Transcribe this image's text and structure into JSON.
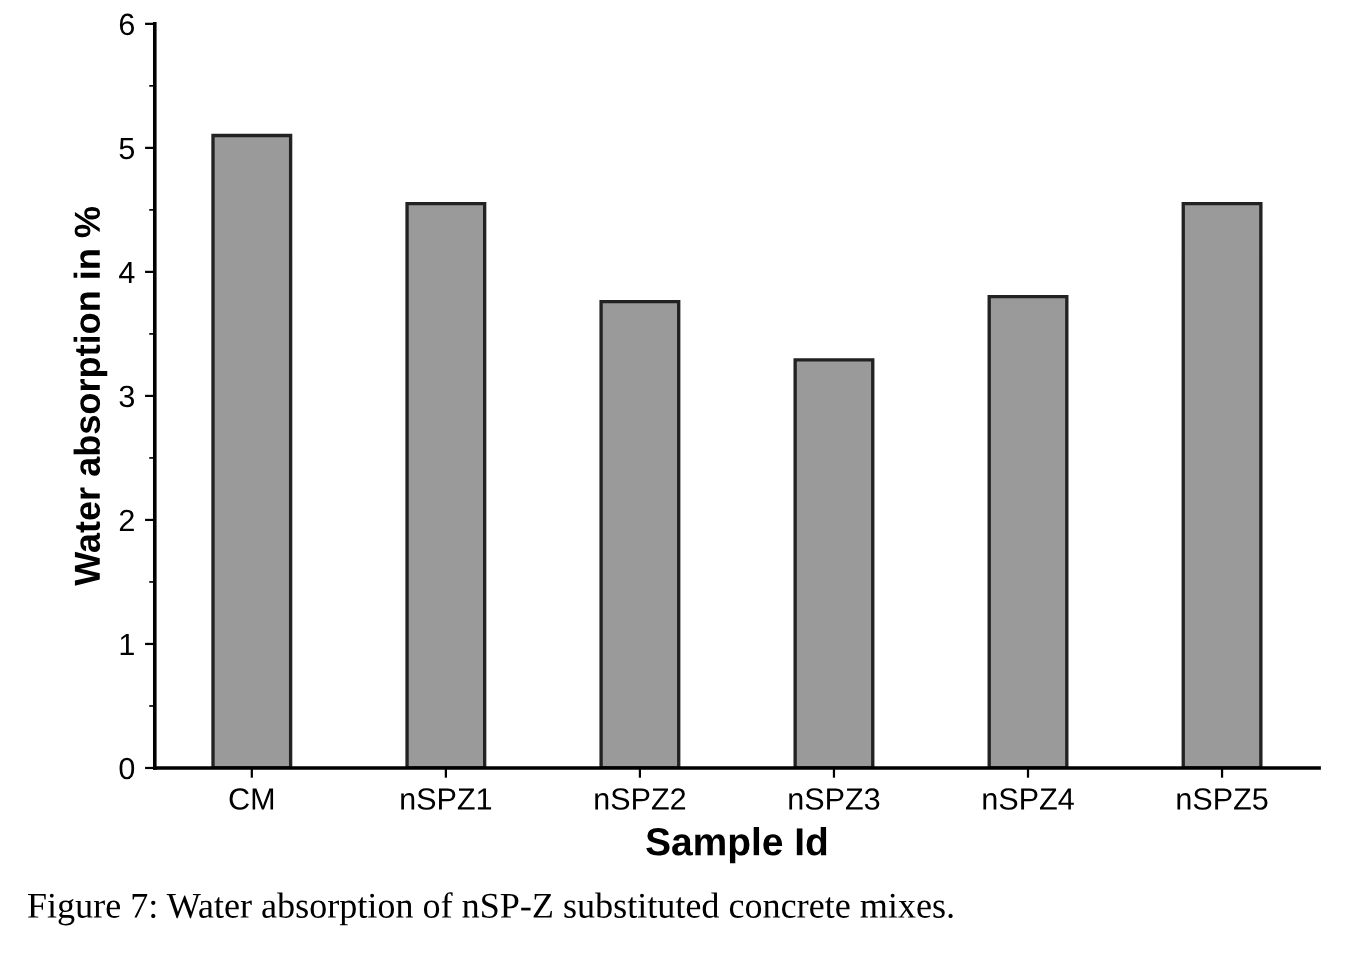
{
  "chart_data": {
    "type": "bar",
    "xlabel": "Sample Id",
    "ylabel": "Water absorption in %",
    "categories": [
      "CM",
      "nSPZ1",
      "nSPZ2",
      "nSPZ3",
      "nSPZ4",
      "nSPZ5"
    ],
    "values": [
      5.1,
      4.55,
      3.76,
      3.29,
      3.8,
      4.55
    ],
    "color": "#9a9a9a",
    "ylim": [
      0,
      6
    ],
    "yticks": [
      0,
      1,
      2,
      3,
      4,
      5,
      6
    ],
    "grid": false,
    "annotations": [
      "Figure 7: Water absorption of nSP-Z substituted concrete mixes."
    ]
  }
}
